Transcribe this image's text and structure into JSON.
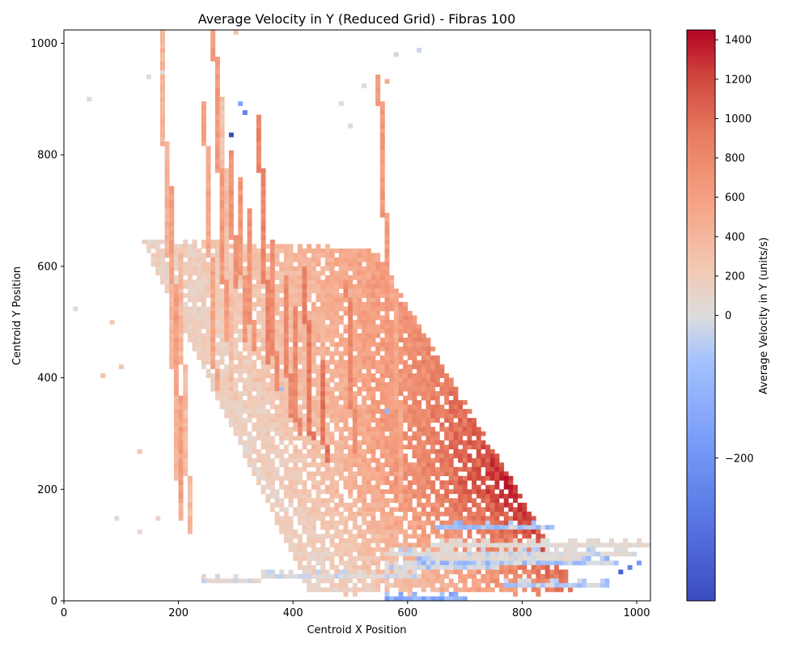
{
  "chart_data": {
    "type": "heatmap",
    "title": "Average Velocity in Y (Reduced Grid) - Fibras 100",
    "xlabel": "Centroid X Position",
    "ylabel": "Centroid Y Position",
    "xlim": [
      0,
      1024
    ],
    "ylim": [
      0,
      1024
    ],
    "cell_size": 8,
    "x_ticks": [
      0,
      200,
      400,
      600,
      800,
      1000
    ],
    "y_ticks": [
      0,
      200,
      400,
      600,
      800,
      1000
    ],
    "colorbar": {
      "label": "Average Velocity in Y (units/s)",
      "colormap": "coolwarm",
      "scale": "two-slope",
      "vmin": -400,
      "vcenter": 0,
      "vmax": 1450,
      "ticks": [
        1400,
        1200,
        1000,
        800,
        600,
        400,
        200,
        0,
        -200
      ]
    },
    "colors": {
      "low": "#3b4cc0",
      "center": "#dddddd",
      "high": "#b40426"
    },
    "features": [
      {
        "kind": "point",
        "x": 292,
        "y": 836,
        "value": -400
      },
      {
        "kind": "point",
        "x": 312,
        "y": 876,
        "value": -250
      },
      {
        "kind": "point",
        "x": 304,
        "y": 888,
        "value": -150
      },
      {
        "kind": "point",
        "x": 968,
        "y": 52,
        "value": -350
      },
      {
        "kind": "point",
        "x": 988,
        "y": 56,
        "value": -250
      },
      {
        "kind": "point",
        "x": 1000,
        "y": 68,
        "value": -180
      },
      {
        "kind": "point",
        "x": 564,
        "y": 340,
        "value": -100
      },
      {
        "kind": "point",
        "x": 380,
        "y": 380,
        "value": -80
      }
    ]
  }
}
